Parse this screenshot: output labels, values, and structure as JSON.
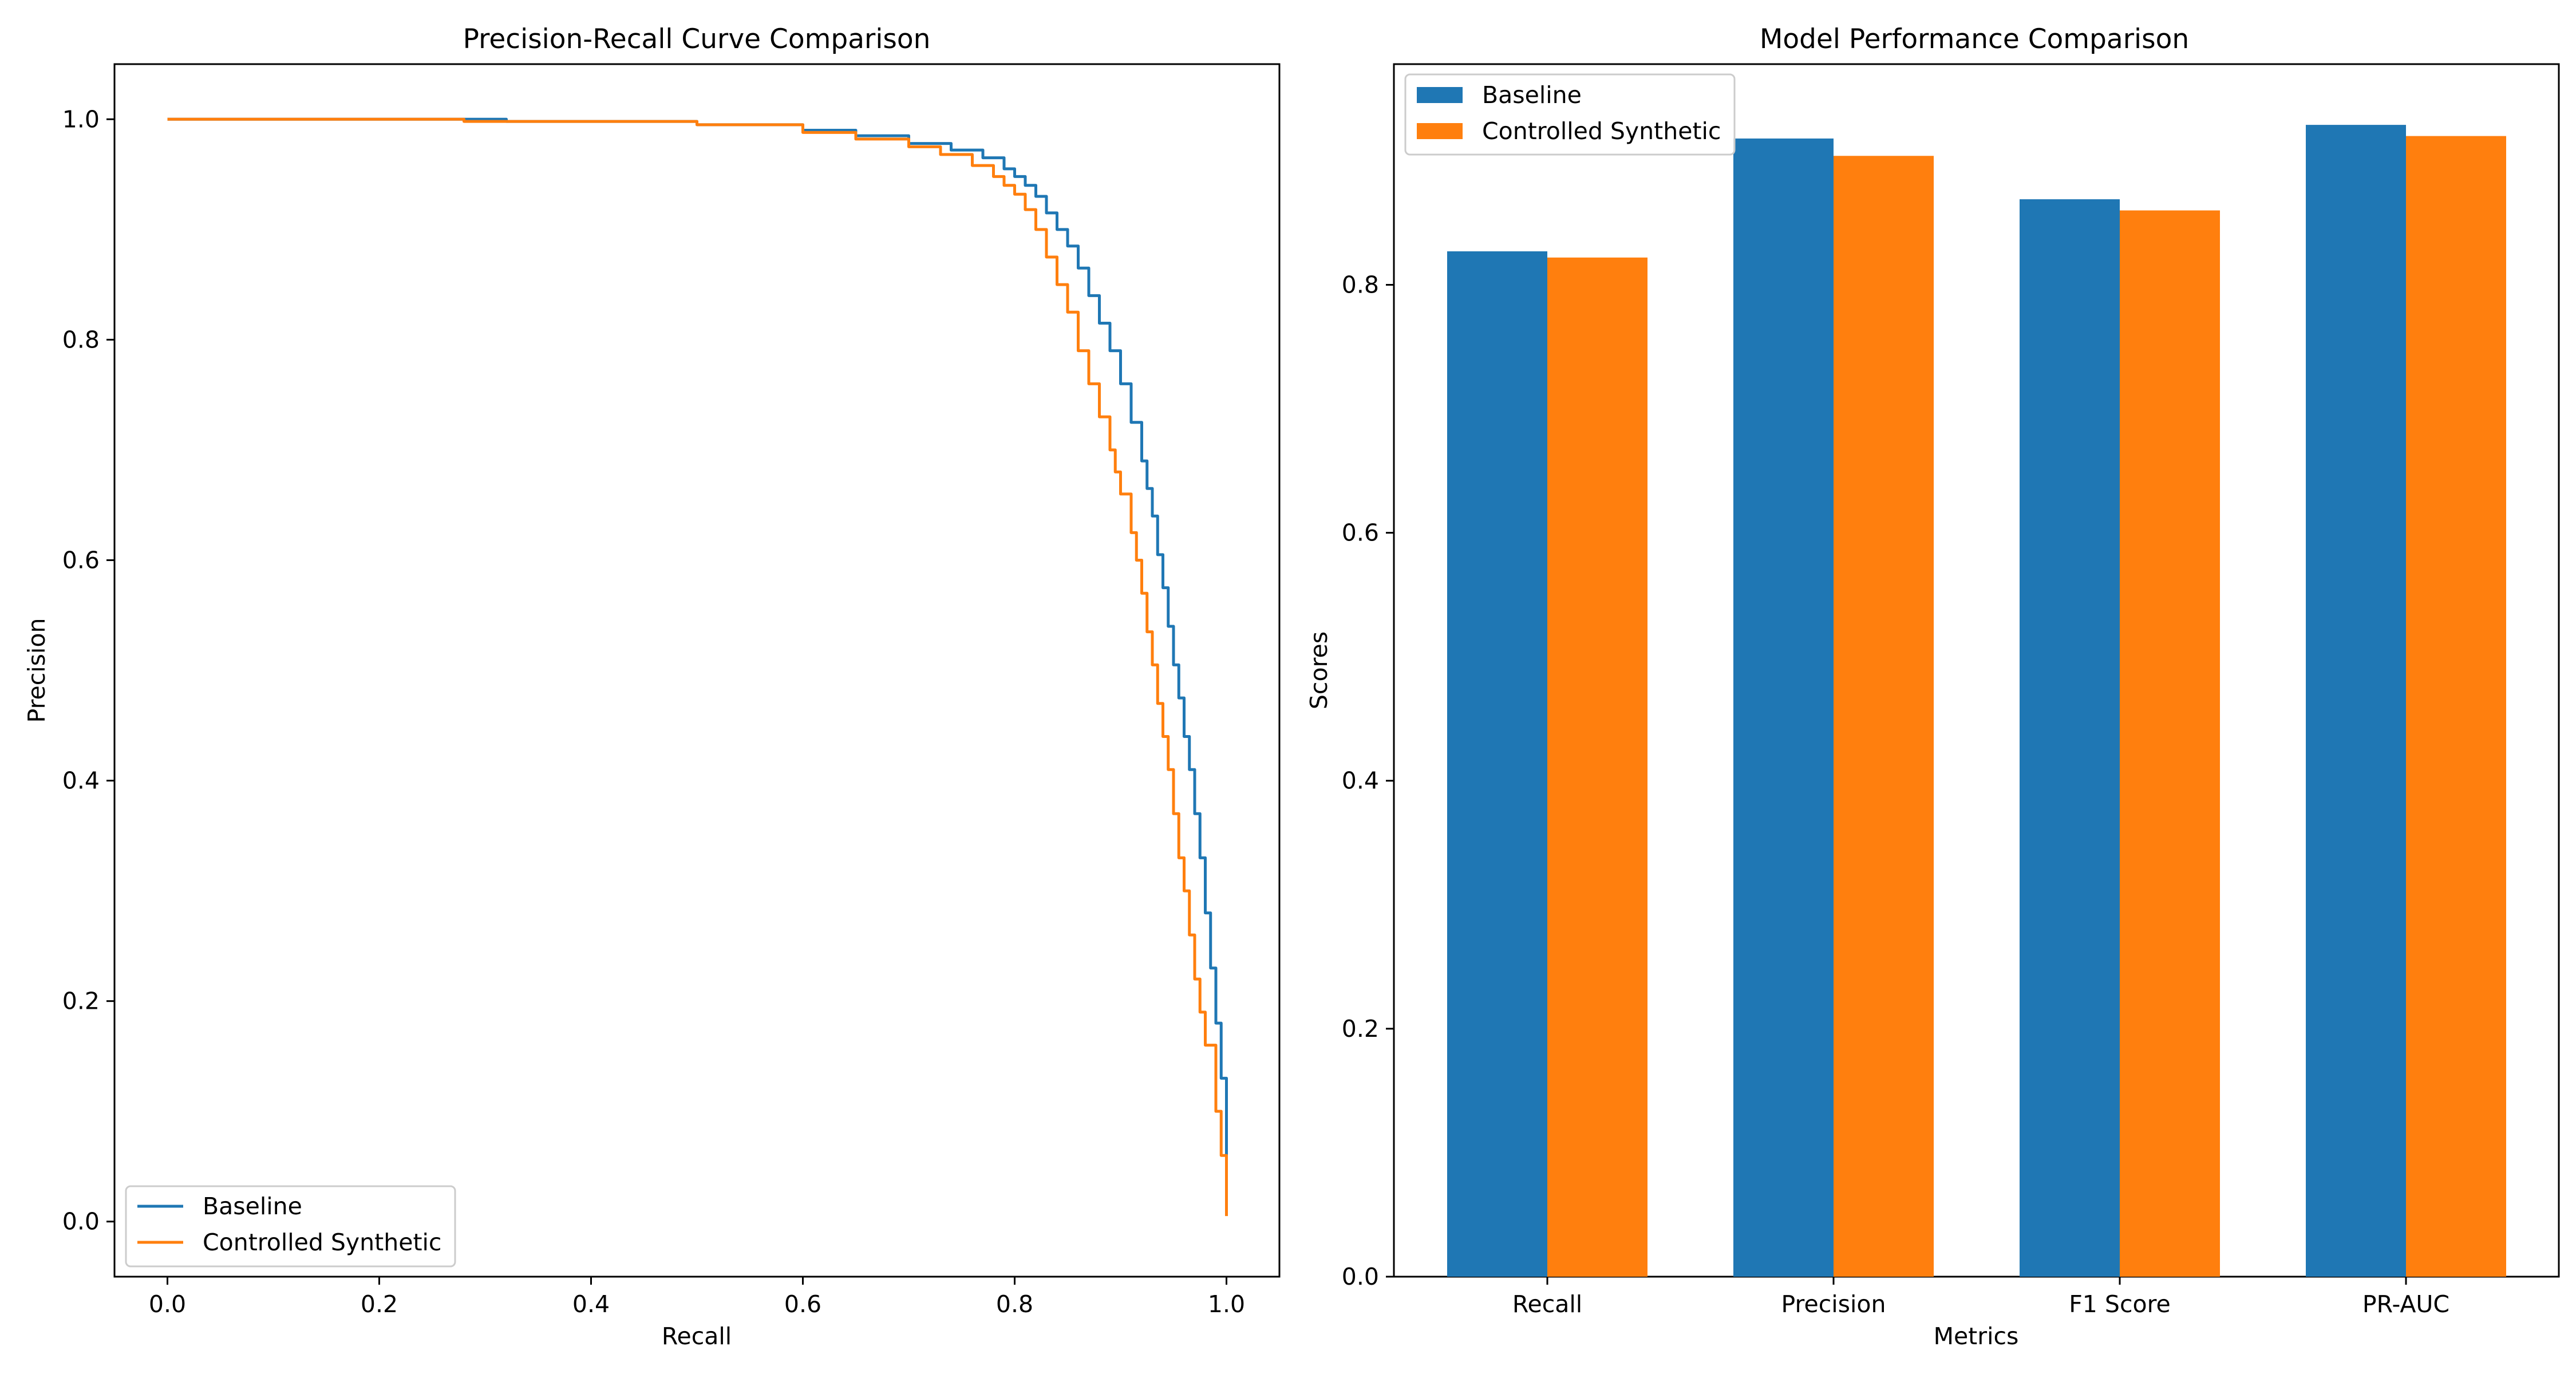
{
  "chart_data": [
    {
      "type": "line",
      "title": "Precision-Recall Curve Comparison",
      "xlabel": "Recall",
      "ylabel": "Precision",
      "xlim": [
        -0.05,
        1.05
      ],
      "ylim": [
        -0.05,
        1.05
      ],
      "xticks": [
        0.0,
        0.2,
        0.4,
        0.6,
        0.8,
        1.0
      ],
      "yticks": [
        0.0,
        0.2,
        0.4,
        0.6,
        0.8,
        1.0
      ],
      "grid": false,
      "legend_position": "lower-left",
      "series": [
        {
          "name": "Baseline",
          "color": "#1f77b4",
          "x": [
            0.0,
            0.2,
            0.32,
            0.45,
            0.5,
            0.6,
            0.65,
            0.7,
            0.74,
            0.77,
            0.79,
            0.8,
            0.81,
            0.82,
            0.83,
            0.84,
            0.85,
            0.86,
            0.87,
            0.88,
            0.89,
            0.9,
            0.91,
            0.92,
            0.925,
            0.93,
            0.935,
            0.94,
            0.945,
            0.95,
            0.955,
            0.96,
            0.965,
            0.97,
            0.975,
            0.98,
            0.985,
            0.99,
            0.995,
            1.0,
            1.0
          ],
          "y": [
            1.0,
            1.0,
            0.998,
            0.998,
            0.995,
            0.99,
            0.985,
            0.978,
            0.972,
            0.965,
            0.955,
            0.948,
            0.94,
            0.93,
            0.915,
            0.9,
            0.885,
            0.865,
            0.84,
            0.815,
            0.79,
            0.76,
            0.725,
            0.69,
            0.665,
            0.64,
            0.605,
            0.575,
            0.54,
            0.505,
            0.475,
            0.44,
            0.41,
            0.37,
            0.33,
            0.28,
            0.23,
            0.18,
            0.13,
            0.06,
            0.01
          ]
        },
        {
          "name": "Controlled Synthetic",
          "color": "#ff7f0e",
          "x": [
            0.0,
            0.2,
            0.28,
            0.45,
            0.5,
            0.6,
            0.65,
            0.7,
            0.73,
            0.76,
            0.78,
            0.79,
            0.8,
            0.81,
            0.82,
            0.83,
            0.84,
            0.85,
            0.86,
            0.87,
            0.88,
            0.89,
            0.895,
            0.9,
            0.91,
            0.915,
            0.92,
            0.925,
            0.93,
            0.935,
            0.94,
            0.945,
            0.95,
            0.955,
            0.96,
            0.965,
            0.97,
            0.975,
            0.98,
            0.99,
            0.995,
            1.0,
            1.0
          ],
          "y": [
            1.0,
            1.0,
            0.998,
            0.998,
            0.995,
            0.988,
            0.982,
            0.975,
            0.968,
            0.958,
            0.948,
            0.94,
            0.932,
            0.918,
            0.9,
            0.875,
            0.85,
            0.825,
            0.79,
            0.76,
            0.73,
            0.7,
            0.68,
            0.66,
            0.625,
            0.6,
            0.57,
            0.535,
            0.505,
            0.47,
            0.44,
            0.41,
            0.37,
            0.33,
            0.3,
            0.26,
            0.22,
            0.19,
            0.16,
            0.1,
            0.06,
            0.02,
            0.005
          ]
        }
      ]
    },
    {
      "type": "bar",
      "title": "Model Performance Comparison",
      "xlabel": "Metrics",
      "ylabel": "Scores",
      "ylim": [
        0.0,
        0.978
      ],
      "yticks": [
        0.0,
        0.2,
        0.4,
        0.6,
        0.8
      ],
      "grid": false,
      "legend_position": "top-left",
      "categories": [
        "Recall",
        "Precision",
        "F1 Score",
        "PR-AUC"
      ],
      "series": [
        {
          "name": "Baseline",
          "color": "#1f77b4",
          "values": [
            0.827,
            0.918,
            0.869,
            0.929
          ]
        },
        {
          "name": "Controlled Synthetic",
          "color": "#ff7f0e",
          "values": [
            0.822,
            0.904,
            0.86,
            0.92
          ]
        }
      ]
    }
  ]
}
